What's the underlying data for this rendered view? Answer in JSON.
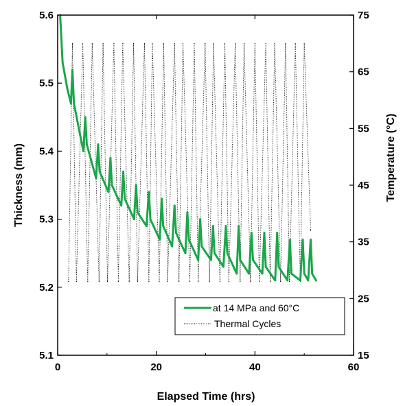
{
  "chart_data": {
    "type": "line",
    "xlabel": "Elapsed Time (hrs)",
    "ylabel_left": "Thickness (mm)",
    "ylabel_right": "Temperature (°C)",
    "xlim": [
      0,
      60
    ],
    "ylim_left": [
      5.1,
      5.6
    ],
    "ylim_right": [
      15,
      75
    ],
    "xticks": [
      0,
      20,
      40,
      60
    ],
    "yticks_left": [
      5.1,
      5.2,
      5.3,
      5.4,
      5.5,
      5.6
    ],
    "yticks_right": [
      15,
      25,
      35,
      45,
      55,
      65,
      75
    ],
    "xtick_labels": [
      "0",
      "20",
      "40",
      "60"
    ],
    "ytick_labels_left": [
      "5.1",
      "5.2",
      "5.3",
      "5.4",
      "5.5",
      "5.6"
    ],
    "ytick_labels_right": [
      "15",
      "25",
      "35",
      "45",
      "55",
      "65",
      "75"
    ],
    "grid": false,
    "legend_position": "bottom-right",
    "colors": {
      "thickness": "#1aa64a",
      "thermal": "#000000"
    },
    "series": [
      {
        "name": "at 14 MPa and 60°C",
        "axis": "left",
        "style": "solid",
        "x": [
          0.5,
          1.0,
          2.0,
          2.7,
          3.0,
          3.3,
          5.2,
          5.6,
          5.9,
          7.8,
          8.2,
          8.5,
          10.3,
          10.7,
          11.0,
          12.9,
          13.3,
          13.6,
          15.5,
          15.9,
          16.2,
          18.0,
          18.5,
          18.8,
          20.7,
          21.1,
          21.4,
          23.2,
          23.7,
          24.0,
          25.9,
          26.3,
          26.6,
          28.5,
          28.9,
          29.2,
          31.1,
          31.5,
          31.8,
          33.6,
          34.1,
          34.4,
          36.3,
          36.7,
          37.0,
          38.8,
          39.3,
          39.6,
          41.5,
          41.9,
          42.2,
          44.1,
          44.5,
          44.8,
          46.6,
          47.1,
          47.4,
          49.2,
          49.7,
          50.0,
          50.8,
          51.3,
          51.6,
          52.4
        ],
        "y": [
          5.6,
          5.53,
          5.49,
          5.47,
          5.52,
          5.47,
          5.4,
          5.45,
          5.41,
          5.36,
          5.41,
          5.37,
          5.34,
          5.39,
          5.35,
          5.32,
          5.37,
          5.33,
          5.3,
          5.35,
          5.31,
          5.29,
          5.34,
          5.3,
          5.27,
          5.33,
          5.29,
          5.26,
          5.32,
          5.28,
          5.25,
          5.31,
          5.27,
          5.24,
          5.3,
          5.26,
          5.24,
          5.29,
          5.25,
          5.23,
          5.29,
          5.25,
          5.22,
          5.29,
          5.24,
          5.22,
          5.28,
          5.24,
          5.22,
          5.28,
          5.23,
          5.21,
          5.28,
          5.23,
          5.21,
          5.27,
          5.22,
          5.21,
          5.27,
          5.22,
          5.21,
          5.27,
          5.22,
          5.21
        ]
      },
      {
        "name": "Thermal Cycles",
        "axis": "right",
        "style": "dotted",
        "x": [
          2.2,
          3.0,
          3.8,
          5.1,
          6.1,
          7.0,
          8.4,
          9.2,
          10.1,
          11.4,
          12.3,
          13.2,
          14.5,
          15.4,
          16.2,
          17.6,
          18.5,
          19.2,
          20.6,
          21.5,
          22.3,
          23.7,
          24.6,
          25.4,
          26.8,
          27.7,
          28.5,
          29.9,
          30.8,
          31.6,
          32.9,
          33.9,
          34.7,
          36.0,
          37.0,
          37.8,
          39.1,
          40.0,
          40.9,
          42.2,
          43.1,
          44.0,
          45.2,
          46.2,
          47.0,
          48.2,
          49.2,
          50.0,
          51.3
        ],
        "y": [
          28,
          70,
          28,
          70,
          28,
          70,
          28,
          70,
          28,
          70,
          28,
          70,
          28,
          70,
          28,
          70,
          28,
          70,
          28,
          70,
          28,
          70,
          28,
          70,
          28,
          70,
          28,
          70,
          28,
          70,
          28,
          70,
          28,
          70,
          28,
          70,
          28,
          70,
          28,
          70,
          28,
          70,
          28,
          70,
          28,
          70,
          28,
          70,
          37
        ]
      }
    ]
  }
}
